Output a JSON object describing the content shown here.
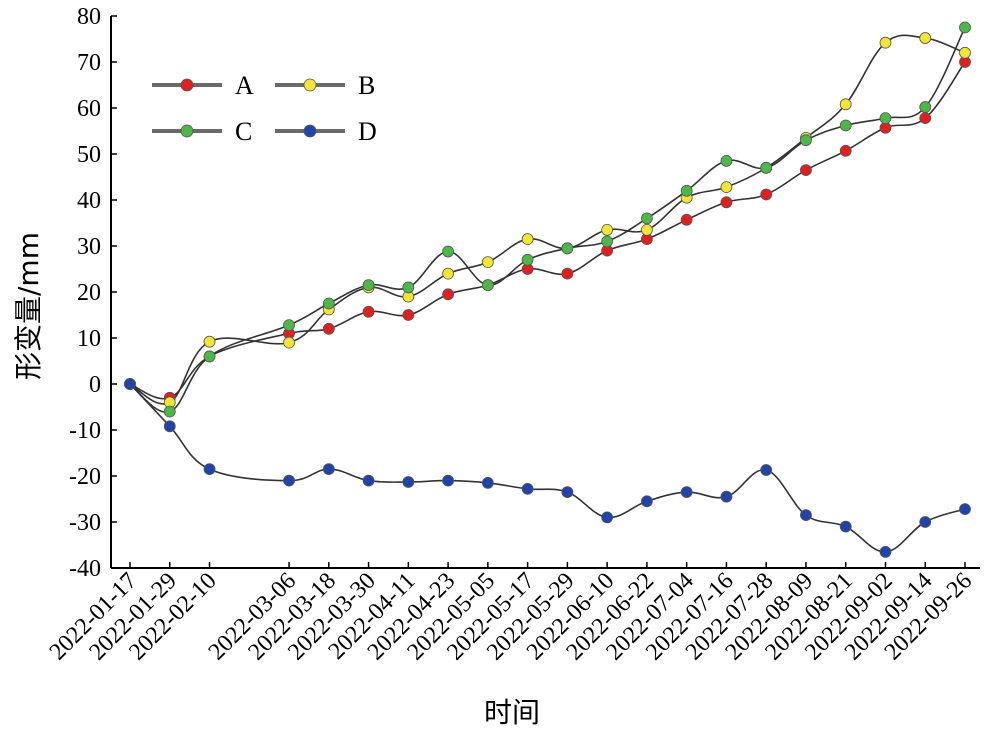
{
  "chart_data": {
    "type": "line",
    "title": "",
    "xlabel": "时间",
    "ylabel": "形变量/mm",
    "ylim": [
      -40,
      80
    ],
    "yticks": [
      -40,
      -30,
      -20,
      -10,
      0,
      10,
      20,
      30,
      40,
      50,
      60,
      70,
      80
    ],
    "x": [
      "2022-01-17",
      "2022-01-29",
      "2022-02-10",
      "2022-03-06",
      "2022-03-18",
      "2022-03-30",
      "2022-04-11",
      "2022-04-23",
      "2022-05-05",
      "2022-05-17",
      "2022-05-29",
      "2022-06-10",
      "2022-06-22",
      "2022-07-04",
      "2022-07-16",
      "2022-07-28",
      "2022-08-09",
      "2022-08-21",
      "2022-09-02",
      "2022-09-14",
      "2022-09-26"
    ],
    "grid": false,
    "legend_position": "top-left",
    "series": [
      {
        "name": "A",
        "color": "#e02020",
        "values": [
          0,
          -3,
          6,
          11,
          12,
          15.7,
          15,
          19.5,
          21.5,
          25,
          24,
          29,
          31.5,
          35.7,
          39.5,
          41.2,
          46.5,
          50.7,
          55.7,
          57.8,
          70
        ]
      },
      {
        "name": "B",
        "color": "#f2e634",
        "values": [
          0,
          -4,
          9.2,
          9,
          16.2,
          21,
          19,
          24,
          26.5,
          31.5,
          29.5,
          33.5,
          33.5,
          40.5,
          42.8,
          47,
          53.5,
          60.8,
          74.2,
          75.2,
          72
        ]
      },
      {
        "name": "C",
        "color": "#4db848",
        "values": [
          0,
          -6,
          6,
          12.8,
          17.5,
          21.5,
          21,
          28.8,
          21.5,
          27,
          29.5,
          31,
          36,
          42,
          48.5,
          47,
          53,
          56.2,
          57.8,
          60.2,
          77.5
        ]
      },
      {
        "name": "D",
        "color": "#2244aa",
        "values": [
          0,
          -9.2,
          -18.5,
          -21,
          -18.5,
          -21,
          -21.3,
          -21,
          -21.5,
          -22.8,
          -23.5,
          -29,
          -25.5,
          -23.5,
          -24.5,
          -18.7,
          -28.5,
          -31,
          -36.5,
          -30,
          -27.2
        ]
      }
    ]
  }
}
